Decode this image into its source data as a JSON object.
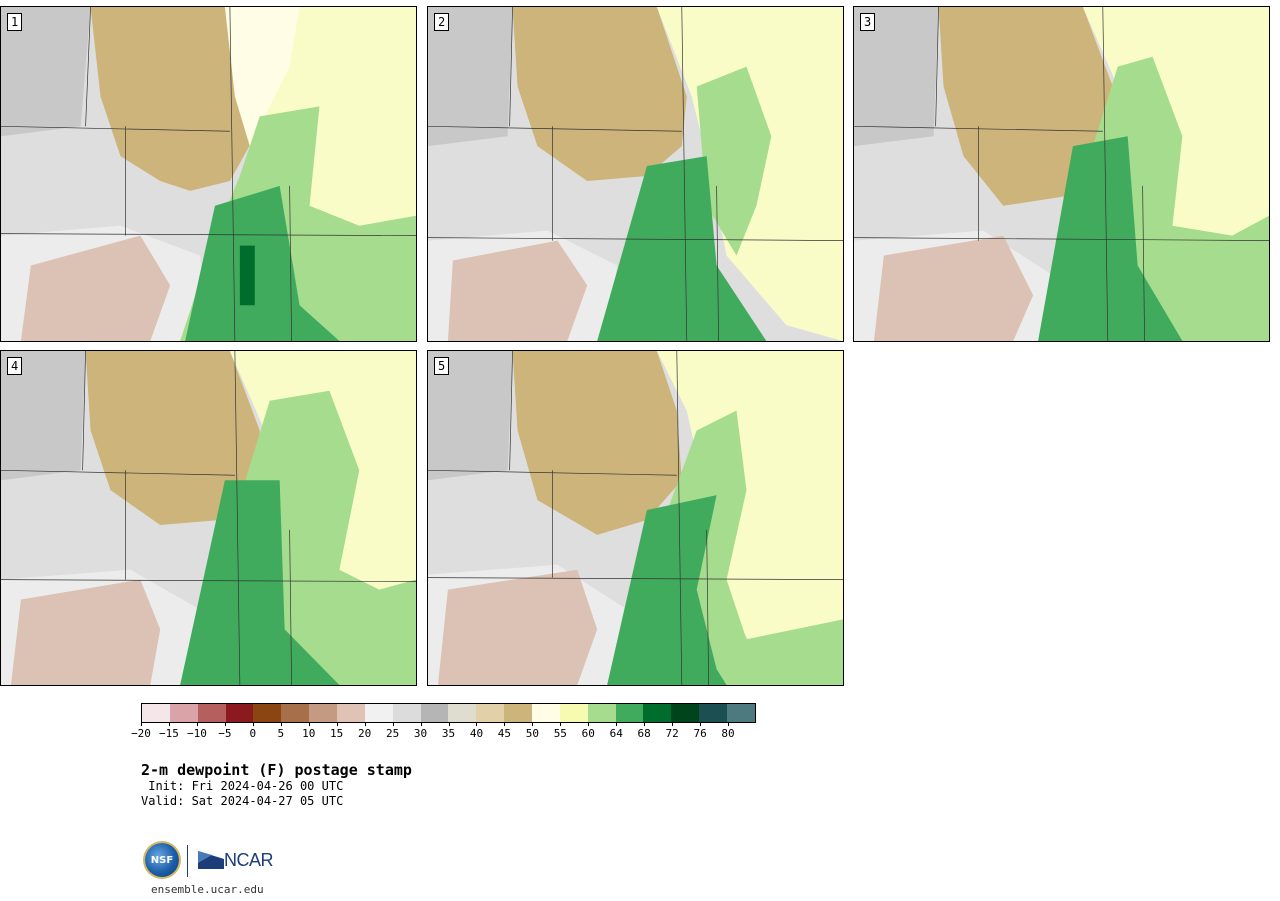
{
  "panels": [
    {
      "label": "1"
    },
    {
      "label": "2"
    },
    {
      "label": "3"
    },
    {
      "label": "4"
    },
    {
      "label": "5"
    }
  ],
  "colorbar": {
    "colors": [
      "#f5e6ea",
      "#d9a3a8",
      "#b5605f",
      "#8b1a1f",
      "#8b4513",
      "#a8704a",
      "#c49a82",
      "#e0c3b5",
      "#f1f1f1",
      "#dcdcdc",
      "#b5b5b5",
      "#dfddd0",
      "#e2d0a8",
      "#ccb47a",
      "#fffde6",
      "#f7fbb2",
      "#a6dc8d",
      "#41ab5d",
      "#006d2c",
      "#00441b",
      "#1b4f52",
      "#4d7a7f"
    ],
    "tick_labels": [
      "−20",
      "−15",
      "−10",
      "−5",
      "0",
      "5",
      "10",
      "15",
      "20",
      "25",
      "30",
      "35",
      "40",
      "45",
      "50",
      "55",
      "60",
      "64",
      "68",
      "72",
      "76",
      "80"
    ]
  },
  "title": "2-m dewpoint (F) postage stamp",
  "init_text": " Init: Fri 2024-04-26 00 UTC",
  "valid_text": "Valid: Sat 2024-04-27 05 UTC",
  "logo": {
    "nsf": "NSF",
    "ncar": "NCAR"
  },
  "website": "ensemble.ucar.edu"
}
